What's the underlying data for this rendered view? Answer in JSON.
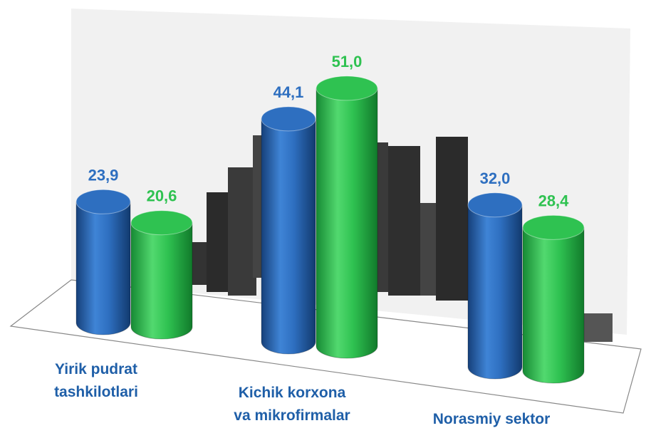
{
  "chart_data": {
    "type": "bar",
    "categories": [
      "Yirik pudrat\ntashkilotlari",
      "Kichik korxona\nva mikrofirmalar",
      "Norasmiy sektor"
    ],
    "series": [
      {
        "color": "#2e6fc0",
        "values": [
          23.9,
          44.1,
          32.0
        ],
        "value_labels": [
          "23,9",
          "44,1",
          "32,0"
        ]
      },
      {
        "color": "#2fc251",
        "values": [
          20.6,
          51.0,
          28.4
        ],
        "value_labels": [
          "20,6",
          "51,0",
          "28,4"
        ]
      }
    ]
  }
}
